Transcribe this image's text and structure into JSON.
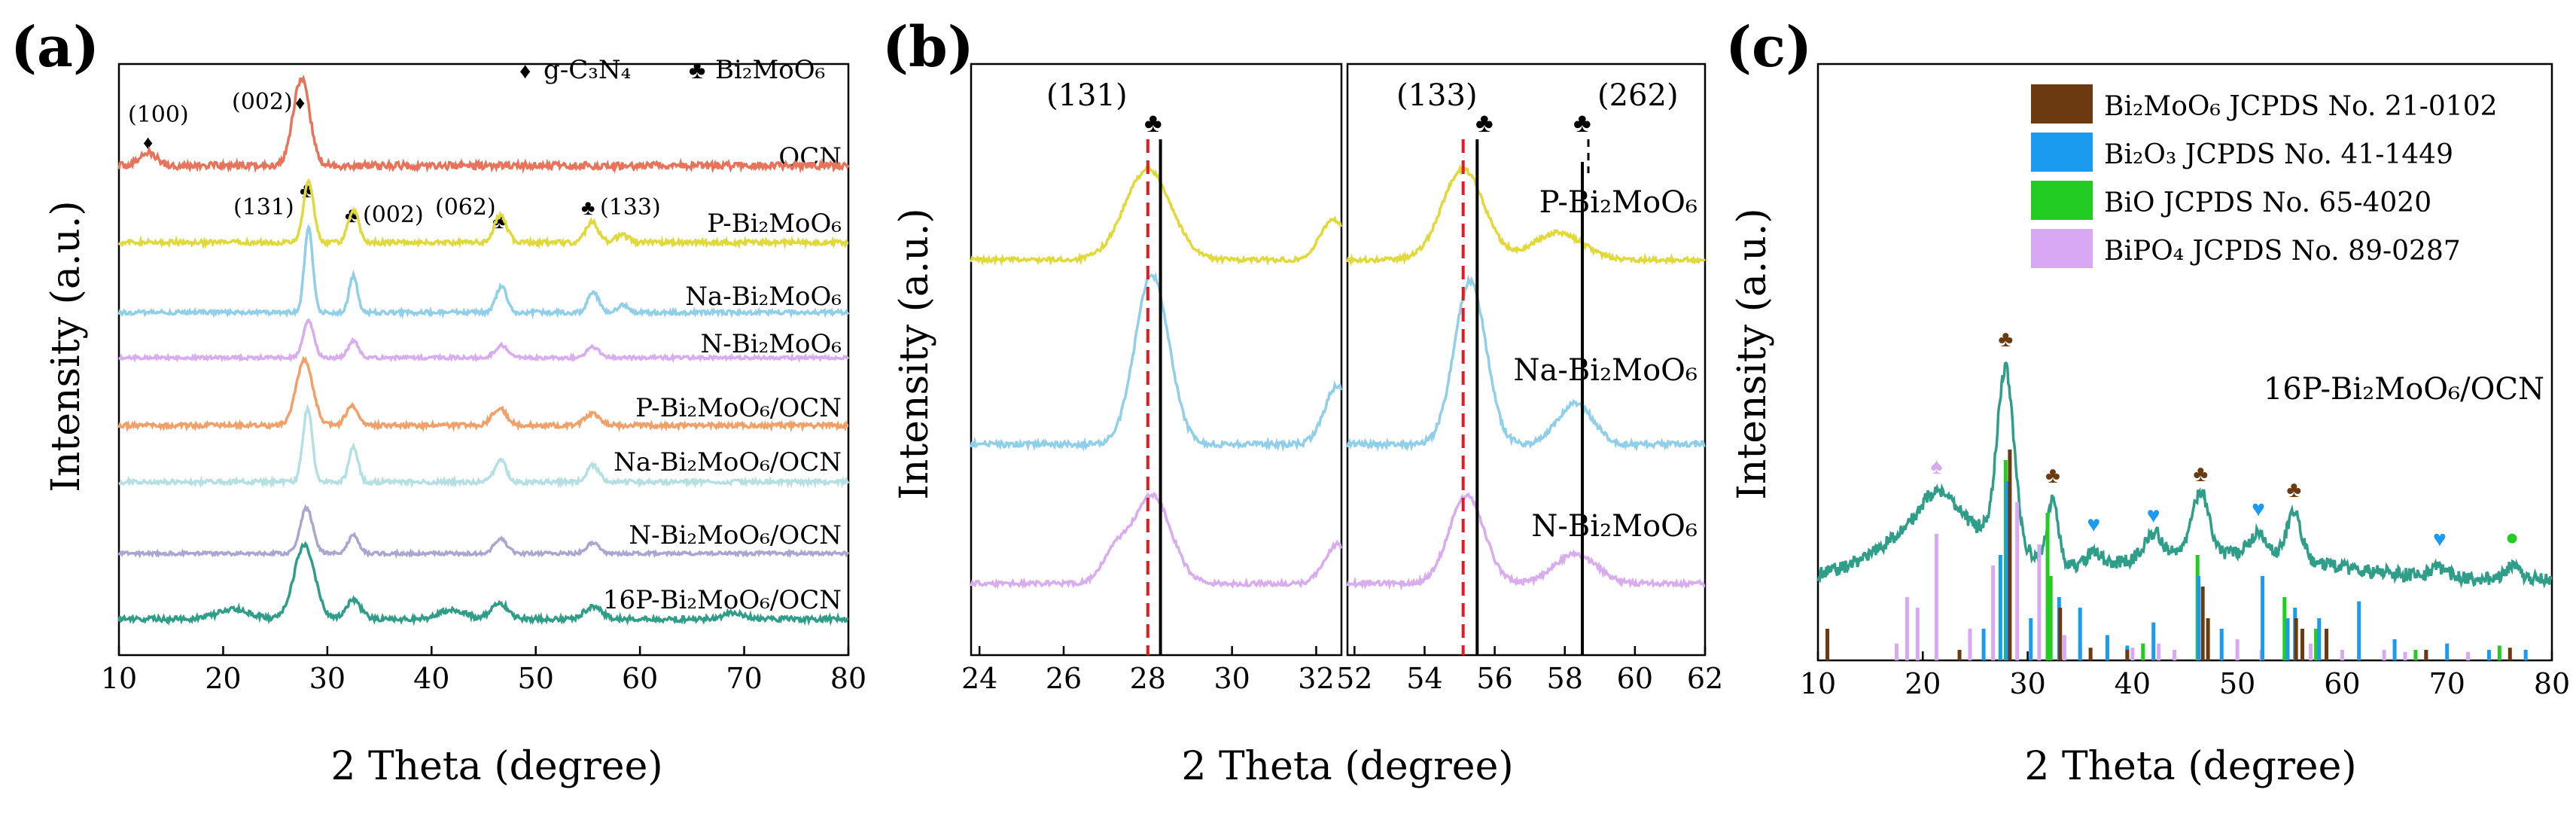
{
  "colors": {
    "ocn": "#E8735A",
    "p": "#E1D93A",
    "na": "#8FCFEA",
    "n": "#D9ACEF",
    "p_ocn": "#F2A068",
    "na_ocn": "#B4E0E4",
    "n_ocn": "#AAA6D2",
    "16p": "#2E9E88",
    "red_dash": "#E11B22",
    "black": "#000000",
    "bi2moo6_ref": "#6B3A10",
    "bi2o3_ref": "#1B9BF0",
    "bio_ref": "#22CC22",
    "bipo4_ref": "#D8A8F4",
    "diamond": "#E8735A",
    "club": "#6B3A10"
  },
  "chart_data": [
    {
      "panel": "(a)",
      "type": "line",
      "xlabel": "2 Theta (degree)",
      "ylabel": "Intensity (a.u.)",
      "xlim": [
        10,
        80
      ],
      "xticks": [
        "10",
        "20",
        "30",
        "40",
        "50",
        "60",
        "70",
        "80"
      ],
      "legend": [
        {
          "marker": "♦",
          "label": "g-C₃N₄"
        },
        {
          "marker": "♣",
          "label": "Bi₂MoO₆"
        }
      ],
      "annotations": [
        {
          "text": "(100)",
          "x": 12.8,
          "series": "OCN"
        },
        {
          "text": "(002)",
          "x": 27.4,
          "series": "OCN"
        },
        {
          "text": "(131)",
          "x": 28.2,
          "series": "P-Bi₂MoO₆"
        },
        {
          "text": "(002)",
          "x": 32.6,
          "series": "P-Bi₂MoO₆"
        },
        {
          "text": "(062)",
          "x": 46.7,
          "series": "P-Bi₂MoO₆"
        },
        {
          "text": "(133)",
          "x": 55.5,
          "series": "P-Bi₂MoO₆"
        }
      ],
      "series": [
        {
          "name": "OCN",
          "color_key": "ocn",
          "offset": 7,
          "peaks": [
            [
              12.8,
              0.15,
              0.8
            ],
            [
              27.5,
              1.0,
              0.8
            ]
          ]
        },
        {
          "name": "P-Bi₂MoO₆",
          "color_key": "p",
          "offset": 6,
          "peaks": [
            [
              28.2,
              1.0,
              0.5
            ],
            [
              32.5,
              0.55,
              0.5
            ],
            [
              46.6,
              0.45,
              0.6
            ],
            [
              55.4,
              0.35,
              0.6
            ],
            [
              58.3,
              0.12,
              0.6
            ]
          ]
        },
        {
          "name": "Na-Bi₂MoO₆",
          "color_key": "na",
          "offset": 5,
          "peaks": [
            [
              28.2,
              1.6,
              0.4
            ],
            [
              32.5,
              0.7,
              0.4
            ],
            [
              46.7,
              0.5,
              0.5
            ],
            [
              55.5,
              0.4,
              0.5
            ],
            [
              58.4,
              0.15,
              0.5
            ]
          ]
        },
        {
          "name": "N-Bi₂MoO₆",
          "color_key": "n",
          "offset": 4,
          "peaks": [
            [
              28.2,
              0.9,
              0.5
            ],
            [
              32.5,
              0.4,
              0.5
            ],
            [
              46.7,
              0.3,
              0.6
            ],
            [
              55.5,
              0.25,
              0.6
            ]
          ]
        },
        {
          "name": "P-Bi₂MoO₆/OCN",
          "color_key": "p_ocn",
          "offset": 3,
          "peaks": [
            [
              27.8,
              1.15,
              0.8
            ],
            [
              32.4,
              0.35,
              0.6
            ],
            [
              46.5,
              0.3,
              0.7
            ],
            [
              55.4,
              0.2,
              0.7
            ]
          ]
        },
        {
          "name": "Na-Bi₂MoO₆/OCN",
          "color_key": "na_ocn",
          "offset": 2,
          "peaks": [
            [
              28.1,
              1.3,
              0.45
            ],
            [
              32.5,
              0.6,
              0.45
            ],
            [
              46.6,
              0.4,
              0.55
            ],
            [
              55.5,
              0.3,
              0.55
            ]
          ]
        },
        {
          "name": "N-Bi₂MoO₆/OCN",
          "color_key": "n_ocn",
          "offset": 1,
          "peaks": [
            [
              28.0,
              1.1,
              0.6
            ],
            [
              32.5,
              0.45,
              0.5
            ],
            [
              46.6,
              0.35,
              0.6
            ],
            [
              55.5,
              0.25,
              0.6
            ]
          ]
        },
        {
          "name": "16P-Bi₂MoO₆/OCN",
          "color_key": "16p",
          "offset": 0,
          "peaks": [
            [
              21.0,
              0.15,
              1.5
            ],
            [
              27.8,
              1.15,
              1.0
            ],
            [
              32.5,
              0.3,
              0.7
            ],
            [
              42.0,
              0.15,
              1.2
            ],
            [
              46.5,
              0.25,
              0.8
            ],
            [
              55.5,
              0.2,
              0.8
            ],
            [
              69.0,
              0.1,
              1.0
            ]
          ]
        }
      ]
    },
    {
      "panel": "(b)",
      "type": "line",
      "xlabel": "2 Theta (degree)",
      "ylabel": "Intensity (a.u.)",
      "subpanels": [
        {
          "xlim": [
            23.8,
            32.6
          ],
          "xticks": [
            "24",
            "26",
            "28",
            "30",
            "32"
          ],
          "reference_lines": [
            {
              "x": 28.0,
              "style": "dashed",
              "color_key": "red_dash"
            },
            {
              "x": 28.3,
              "style": "solid",
              "color_key": "black",
              "label": "(131)",
              "marker": "♣"
            }
          ]
        },
        {
          "xlim": [
            51.8,
            62
          ],
          "xticks": [
            "52",
            "54",
            "56",
            "58",
            "60",
            "62"
          ],
          "reference_lines": [
            {
              "x": 55.1,
              "style": "dashed",
              "color_key": "red_dash"
            },
            {
              "x": 55.5,
              "style": "solid",
              "color_key": "black",
              "label": "(133)",
              "marker": "♣"
            },
            {
              "x": 58.5,
              "style": "solid",
              "color_key": "black",
              "label": "(262)",
              "marker": "♣"
            }
          ]
        }
      ],
      "series": [
        {
          "name": "P-Bi₂MoO₆",
          "color_key": "p",
          "offset": 2,
          "peaks": [
            [
              28.0,
              1.0,
              0.55
            ],
            [
              32.4,
              0.45,
              0.3
            ],
            [
              55.1,
              1.0,
              0.6
            ],
            [
              57.8,
              0.3,
              0.7
            ]
          ]
        },
        {
          "name": "Na-Bi₂MoO₆",
          "color_key": "na",
          "offset": 1,
          "peaks": [
            [
              28.1,
              1.45,
              0.4
            ],
            [
              32.5,
              0.5,
              0.3
            ],
            [
              55.3,
              1.4,
              0.45
            ],
            [
              58.3,
              0.35,
              0.5
            ]
          ]
        },
        {
          "name": "N-Bi₂MoO₆",
          "color_key": "n",
          "offset": 0,
          "peaks": [
            [
              28.1,
              0.9,
              0.45
            ],
            [
              27.2,
              0.3,
              0.3
            ],
            [
              32.5,
              0.4,
              0.3
            ],
            [
              55.2,
              0.9,
              0.5
            ],
            [
              58.3,
              0.3,
              0.6
            ]
          ]
        }
      ]
    },
    {
      "panel": "(c)",
      "type": "line",
      "xlabel": "2 Theta (degree)",
      "ylabel": "Intensity (a.u.)",
      "xlim": [
        10,
        80
      ],
      "xticks": [
        "10",
        "20",
        "30",
        "40",
        "50",
        "60",
        "70",
        "80"
      ],
      "series_label": "16P-Bi₂MoO₆/OCN",
      "peaks": [
        [
          21.3,
          0.25,
          1.5
        ],
        [
          27.9,
          1.55,
          0.8
        ],
        [
          32.4,
          0.55,
          0.5
        ],
        [
          36.3,
          0.12,
          0.6
        ],
        [
          42.0,
          0.22,
          0.9
        ],
        [
          46.5,
          0.55,
          0.8
        ],
        [
          52.0,
          0.2,
          0.8
        ],
        [
          55.4,
          0.42,
          0.7
        ],
        [
          69.3,
          0.08,
          0.8
        ],
        [
          76.2,
          0.1,
          0.8
        ]
      ],
      "markers": [
        {
          "x": 21.3,
          "symbol": "♠",
          "color_key": "bipo4_ref"
        },
        {
          "x": 27.9,
          "symbol": "♣",
          "color_key": "club"
        },
        {
          "x": 32.4,
          "symbol": "♣",
          "color_key": "club"
        },
        {
          "x": 36.3,
          "symbol": "♥",
          "color_key": "bi2o3_ref"
        },
        {
          "x": 42.0,
          "symbol": "♥",
          "color_key": "bi2o3_ref"
        },
        {
          "x": 46.5,
          "symbol": "♣",
          "color_key": "club"
        },
        {
          "x": 52.0,
          "symbol": "♥",
          "color_key": "bi2o3_ref"
        },
        {
          "x": 55.4,
          "symbol": "♣",
          "color_key": "club"
        },
        {
          "x": 69.3,
          "symbol": "♥",
          "color_key": "bi2o3_ref"
        },
        {
          "x": 76.2,
          "symbol": "●",
          "color_key": "bio_ref"
        }
      ],
      "legend": [
        {
          "label": "Bi₂MoO₆  JCPDS No. 21-0102",
          "color_key": "bi2moo6_ref"
        },
        {
          "label": "Bi₂O₃  JCPDS No. 41-1449",
          "color_key": "bi2o3_ref"
        },
        {
          "label": "BiO  JCPDS No. 65-4020",
          "color_key": "bio_ref"
        },
        {
          "label": "BiPO₄  JCPDS No. 89-0287",
          "color_key": "bipo4_ref"
        }
      ],
      "reference_sticks": {
        "bi2moo6_ref": [
          [
            10.9,
            0.15
          ],
          [
            23.5,
            0.05
          ],
          [
            28.3,
            1.0
          ],
          [
            33.1,
            0.25
          ],
          [
            36.0,
            0.06
          ],
          [
            39.5,
            0.05
          ],
          [
            46.7,
            0.35
          ],
          [
            47.2,
            0.2
          ],
          [
            55.6,
            0.2
          ],
          [
            56.2,
            0.15
          ],
          [
            58.5,
            0.15
          ],
          [
            68.0,
            0.05
          ],
          [
            76.0,
            0.06
          ]
        ],
        "bi2o3_ref": [
          [
            25.8,
            0.15
          ],
          [
            27.4,
            0.5
          ],
          [
            28.0,
            0.85
          ],
          [
            30.3,
            0.2
          ],
          [
            33.0,
            0.3
          ],
          [
            35.0,
            0.25
          ],
          [
            37.6,
            0.12
          ],
          [
            39.5,
            0.07
          ],
          [
            42.0,
            0.18
          ],
          [
            46.3,
            0.4
          ],
          [
            48.5,
            0.15
          ],
          [
            52.4,
            0.4
          ],
          [
            54.8,
            0.2
          ],
          [
            55.5,
            0.25
          ],
          [
            57.8,
            0.2
          ],
          [
            61.6,
            0.28
          ],
          [
            65.0,
            0.1
          ],
          [
            68.0,
            0.05
          ],
          [
            70.0,
            0.08
          ],
          [
            74.0,
            0.05
          ],
          [
            77.5,
            0.05
          ]
        ],
        "bio_ref": [
          [
            27.9,
            0.95
          ],
          [
            31.9,
            0.7
          ],
          [
            32.2,
            0.4
          ],
          [
            41.0,
            0.08
          ],
          [
            46.2,
            0.5
          ],
          [
            54.5,
            0.3
          ],
          [
            57.5,
            0.15
          ],
          [
            67.0,
            0.05
          ],
          [
            75.0,
            0.07
          ]
        ],
        "bipo4_ref": [
          [
            17.5,
            0.08
          ],
          [
            18.5,
            0.3
          ],
          [
            19.5,
            0.25
          ],
          [
            21.3,
            0.6
          ],
          [
            24.5,
            0.15
          ],
          [
            26.7,
            0.45
          ],
          [
            29.0,
            0.75
          ],
          [
            31.1,
            0.55
          ],
          [
            33.5,
            0.12
          ],
          [
            35.0,
            0.08
          ],
          [
            40.0,
            0.06
          ],
          [
            42.5,
            0.08
          ],
          [
            44.0,
            0.05
          ],
          [
            50.0,
            0.1
          ],
          [
            52.3,
            0.05
          ],
          [
            57.0,
            0.08
          ],
          [
            60.0,
            0.05
          ],
          [
            64.0,
            0.05
          ],
          [
            66.0,
            0.04
          ],
          [
            72.0,
            0.04
          ]
        ]
      }
    }
  ]
}
